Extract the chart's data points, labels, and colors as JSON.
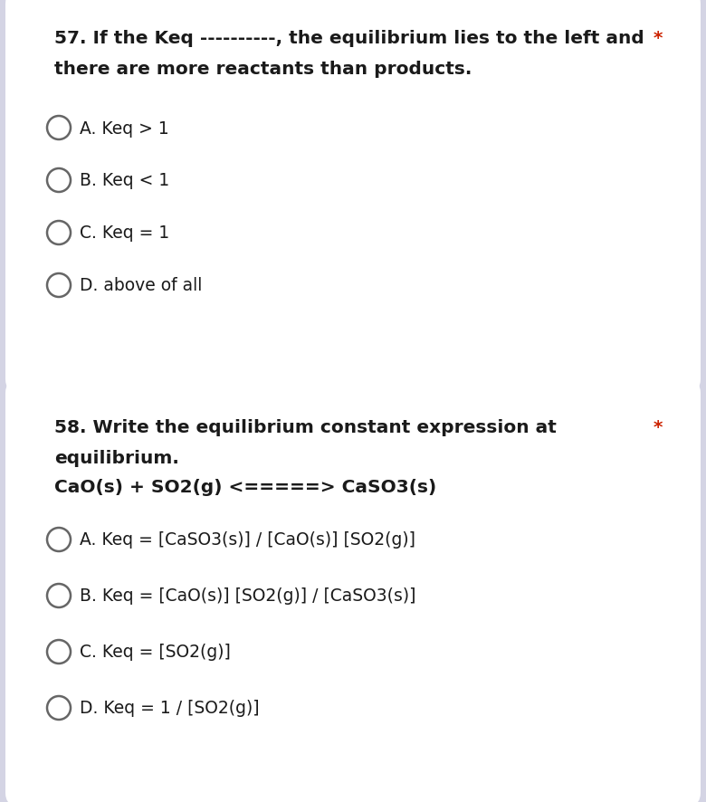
{
  "bg_outer": "#d4d4e4",
  "bg_card": "#ffffff",
  "q1": {
    "number": "57.",
    "question_line1": "If the Keq ----------, the equilibrium lies to the left and",
    "question_line2": "there are more reactants than products.",
    "asterisk": "*",
    "options": [
      "A. Keq > 1",
      "B. Keq < 1",
      "C. Keq = 1",
      "D. above of all"
    ]
  },
  "q2": {
    "number": "58.",
    "question_line1": "Write the equilibrium constant expression at",
    "question_line2": "equilibrium.",
    "question_line3": "CaO(s) + SO2(g) <=====> CaSO3(s)",
    "asterisk": "*",
    "options": [
      "A. Keq = [CaSO3(s)] / [CaO(s)] [SO2(g)]",
      "B. Keq = [CaO(s)] [SO2(g)] / [CaSO3(s)]",
      "C. Keq = [SO2(g)]",
      "D. Keq = 1 / [SO2(g)]"
    ]
  },
  "font_family": "DejaVu Sans",
  "font_size_question": 14.5,
  "font_size_option": 13.5,
  "text_color": "#1a1a1a",
  "asterisk_color": "#cc2200",
  "circle_edge_color": "#666666",
  "circle_linewidth": 1.8
}
